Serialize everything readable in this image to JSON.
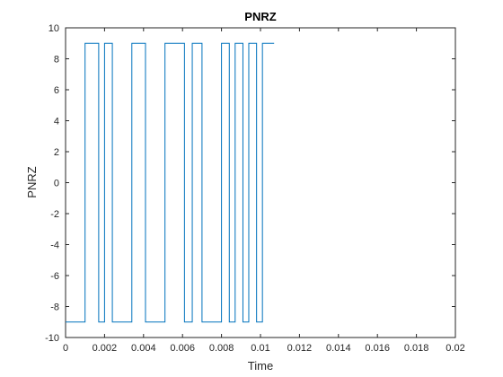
{
  "chart_data": {
    "type": "line",
    "title": "PNRZ",
    "xlabel": "Time",
    "ylabel": "PNRZ",
    "xlim": [
      0,
      0.02
    ],
    "ylim": [
      -10,
      10
    ],
    "xticks": [
      "0",
      "0.002",
      "0.004",
      "0.006",
      "0.008",
      "0.01",
      "0.012",
      "0.014",
      "0.016",
      "0.018",
      "0.02"
    ],
    "yticks": [
      "-10",
      "-8",
      "-6",
      "-4",
      "-2",
      "0",
      "2",
      "4",
      "6",
      "8",
      "10"
    ],
    "grid": false,
    "line_color": "#0072BD",
    "series": [
      {
        "step": "post",
        "x": [
          0,
          0.001,
          0.0017,
          0.002,
          0.0024,
          0.0034,
          0.0041,
          0.0051,
          0.0061,
          0.0065,
          0.007,
          0.008,
          0.0084,
          0.0087,
          0.0091,
          0.0094,
          0.0098,
          0.0101,
          0.0107
        ],
        "y": [
          -9,
          9,
          -9,
          9,
          -9,
          9,
          -9,
          9,
          -9,
          9,
          -9,
          9,
          -9,
          9,
          -9,
          9,
          -9,
          9,
          9
        ]
      }
    ]
  }
}
